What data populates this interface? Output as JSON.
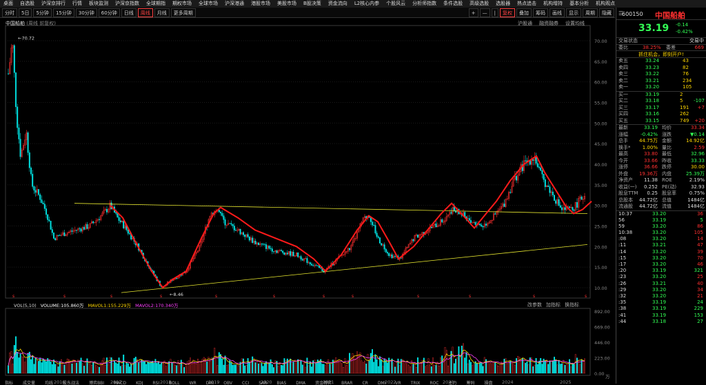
{
  "topbar": [
    "桌面",
    "自选股",
    "沪深京排行",
    "行情",
    "板块监测",
    "沪深京指数",
    "全球期指",
    "期权市场",
    "全球市场",
    "沪深港通",
    "港股市场",
    "美股市场",
    "B股决策",
    "资金流向",
    "L2核心内参",
    "个股风云",
    "分析师指数",
    "条件选股",
    "高级选股",
    "选股器",
    "热点追击",
    "机构增持",
    "基本分析",
    "机构观点"
  ],
  "toolbar": {
    "left": [
      "分时",
      "5日",
      "5分钟",
      "15分钟",
      "30分钟",
      "60分钟",
      "日线",
      "周线",
      "月线",
      "更多周期"
    ],
    "active": "周线",
    "right": [
      "+",
      "—",
      "|",
      "复权",
      "叠加",
      "筹码",
      "画线",
      "显示",
      "周期",
      "隐藏"
    ],
    "right_active": "复权"
  },
  "chart": {
    "title": "中国船舶",
    "title_note": "(周线 前复权)",
    "links": [
      "沪股通",
      "融资融券",
      "设置均线"
    ],
    "max_label": "70.72",
    "min_label": "8.46",
    "y_ticks": [
      "70.00",
      "65.00",
      "60.00",
      "55.00",
      "50.00",
      "45.00",
      "40.00",
      "35.00",
      "30.00",
      "25.00",
      "20.00",
      "15.00",
      "10.00"
    ],
    "vol_ticks": [
      "892.00",
      "669.00",
      "446.00",
      "223.00",
      "0.00"
    ],
    "x_years": [
      "2016",
      "2017",
      "2018",
      "2019",
      "2020",
      "2021",
      "2022",
      "2023",
      "2024",
      "2025"
    ],
    "vol_unit": "万",
    "volume_legend": {
      "name": "VOL(5,10)",
      "volume": "VOLUME:105.860万",
      "ma1": "MAVOL1:155.229万",
      "ma2": "MAVOL2:170.340万"
    },
    "vol_links": [
      "改参数",
      "加指标",
      "换指标"
    ],
    "bottom_tabs": [
      "指标",
      "成交量",
      "均线",
      "股东战法",
      "博弈BBI",
      "MACD",
      "KDJ",
      "RSI",
      "BOLL",
      "WR",
      "DMI",
      "OBV",
      "CCI",
      "SAR",
      "BIAS",
      "DMA",
      "资金博弈",
      "BRAR",
      "CR",
      "DMI",
      "VR",
      "TRIX",
      "ROC",
      "主力",
      "筹码",
      "操盘"
    ]
  },
  "colors": {
    "up": "#ff3030",
    "down": "#00e0e0",
    "trend": "#ff1a1a",
    "support": "#e8e830",
    "ma1": "#ffffff",
    "ma2": "#ffd700",
    "ma3": "#ff40ff"
  },
  "right": {
    "code": "600150",
    "name": "中国船舶",
    "price": "33.19",
    "change": "-0.14",
    "change_pct": "-0.42%",
    "status_label": "交易状态",
    "status_value": "交易中",
    "wb_label": "委比",
    "wb_value": "38.25%",
    "wc_label": "委差",
    "wc_value": "669",
    "promo": "抓住机会，即刻开户!",
    "sells": [
      {
        "l": "卖五",
        "p": "33.24",
        "v": "43"
      },
      {
        "l": "卖四",
        "p": "33.23",
        "v": "82"
      },
      {
        "l": "卖三",
        "p": "33.22",
        "v": "76"
      },
      {
        "l": "卖二",
        "p": "33.21",
        "v": "234"
      },
      {
        "l": "卖一",
        "p": "33.20",
        "v": "105"
      }
    ],
    "buys": [
      {
        "l": "买一",
        "p": "33.19",
        "v": "2",
        "d": ""
      },
      {
        "l": "买二",
        "p": "33.18",
        "v": "5",
        "d": "-107"
      },
      {
        "l": "买三",
        "p": "33.17",
        "v": "191",
        "d": "+7"
      },
      {
        "l": "买四",
        "p": "33.16",
        "v": "262",
        "d": ""
      },
      {
        "l": "买五",
        "p": "33.15",
        "v": "749",
        "d": "+20"
      }
    ],
    "stats": [
      [
        "最新",
        "33.19",
        "均价",
        "33.34"
      ],
      [
        "涨幅",
        "-0.42%",
        "涨跌",
        "▼0.14"
      ],
      [
        "总手",
        "44.75万",
        "金额",
        "14.92亿"
      ],
      [
        "换手*",
        "1.00%",
        "量比",
        "2.59"
      ],
      [
        "最高",
        "33.80",
        "最低",
        "32.96"
      ],
      [
        "今开",
        "33.66",
        "昨收",
        "33.33"
      ],
      [
        "涨停",
        "36.66",
        "跌停",
        "30.00"
      ],
      [
        "外盘",
        "19.36万",
        "内盘",
        "25.39万"
      ],
      [
        "净资产",
        "11.38",
        "ROE",
        "2.19%"
      ],
      [
        "收益(一)",
        "0.252",
        "PE(动)",
        "32.93"
      ],
      [
        "股息TTM",
        "0.25",
        "股息率",
        "0.75%"
      ],
      [
        "总股本",
        "44.72亿",
        "总值",
        "1484亿"
      ],
      [
        "流通股",
        "44.72亿",
        "流值",
        "1484亿"
      ]
    ],
    "ticks": [
      [
        "10:37",
        "33.20",
        "36"
      ],
      [
        "56",
        "33.19",
        "5"
      ],
      [
        "59",
        "33.20",
        "86"
      ],
      [
        "10:38",
        "33.20",
        "105"
      ],
      [
        ":08",
        "33.20",
        "14"
      ],
      [
        ":11",
        "33.21",
        "47"
      ],
      [
        ":14",
        "33.20",
        "39"
      ],
      [
        ":15",
        "33.20",
        "70"
      ],
      [
        ":17",
        "33.20",
        "46"
      ],
      [
        ":20",
        "33.19",
        "321"
      ],
      [
        ":23",
        "33.20",
        "25"
      ],
      [
        ":26",
        "33.21",
        "40"
      ],
      [
        ":29",
        "33.20",
        "34"
      ],
      [
        ":32",
        "33.20",
        "21"
      ],
      [
        ":35",
        "33.19",
        "24"
      ],
      [
        ":38",
        "33.19",
        "229"
      ],
      [
        ":41",
        "33.19",
        "153"
      ],
      [
        ":44",
        "33.18",
        "27"
      ]
    ]
  }
}
